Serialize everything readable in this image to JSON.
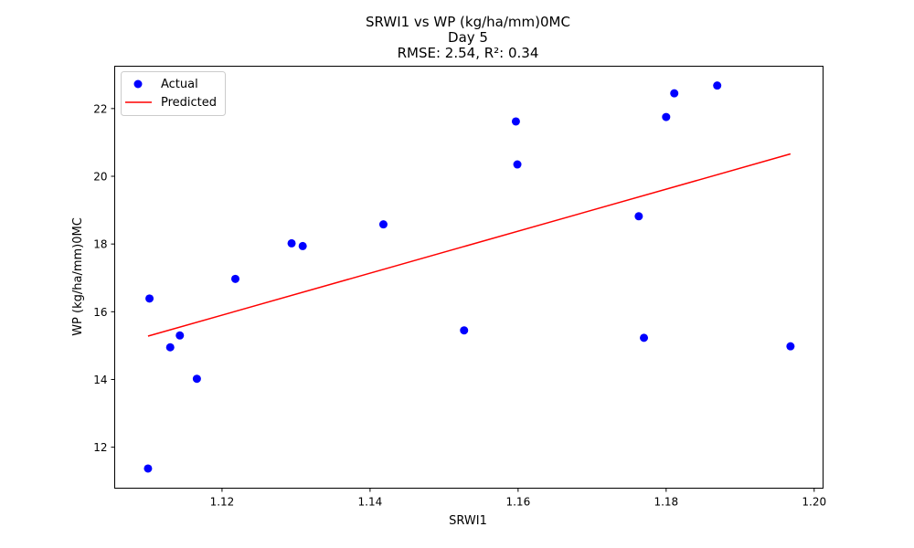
{
  "chart_data": {
    "type": "scatter",
    "title_lines": [
      "SRWI1 vs WP (kg/ha/mm)0MC",
      "Day 5",
      "RMSE: 2.54, R²: 0.34"
    ],
    "xlabel": "SRWI1",
    "ylabel": "WP (kg/ha/mm)0MC",
    "xlim": [
      1.1055,
      1.2012
    ],
    "ylim": [
      10.79,
      23.25
    ],
    "xticks": [
      1.12,
      1.14,
      1.16,
      1.18,
      1.2
    ],
    "xtick_labels": [
      "1.12",
      "1.14",
      "1.16",
      "1.18",
      "1.20"
    ],
    "yticks": [
      12,
      14,
      16,
      18,
      20,
      22
    ],
    "ytick_labels": [
      "12",
      "14",
      "16",
      "18",
      "20",
      "22"
    ],
    "legend_position": "upper-left",
    "series": [
      {
        "name": "Actual",
        "kind": "scatter",
        "color": "#0000ff",
        "points": [
          [
            1.11,
            11.37
          ],
          [
            1.1102,
            16.39
          ],
          [
            1.113,
            14.95
          ],
          [
            1.1143,
            15.3
          ],
          [
            1.1166,
            14.02
          ],
          [
            1.1218,
            16.97
          ],
          [
            1.1294,
            18.02
          ],
          [
            1.1309,
            17.94
          ],
          [
            1.1418,
            18.58
          ],
          [
            1.1527,
            15.45
          ],
          [
            1.1597,
            21.62
          ],
          [
            1.1599,
            20.35
          ],
          [
            1.1763,
            18.82
          ],
          [
            1.177,
            15.23
          ],
          [
            1.18,
            21.75
          ],
          [
            1.1811,
            22.45
          ],
          [
            1.1869,
            22.68
          ],
          [
            1.1968,
            14.98
          ]
        ]
      },
      {
        "name": "Predicted",
        "kind": "line",
        "color": "#ff0000",
        "points": [
          [
            1.11,
            15.28
          ],
          [
            1.1968,
            20.66
          ]
        ]
      }
    ]
  }
}
